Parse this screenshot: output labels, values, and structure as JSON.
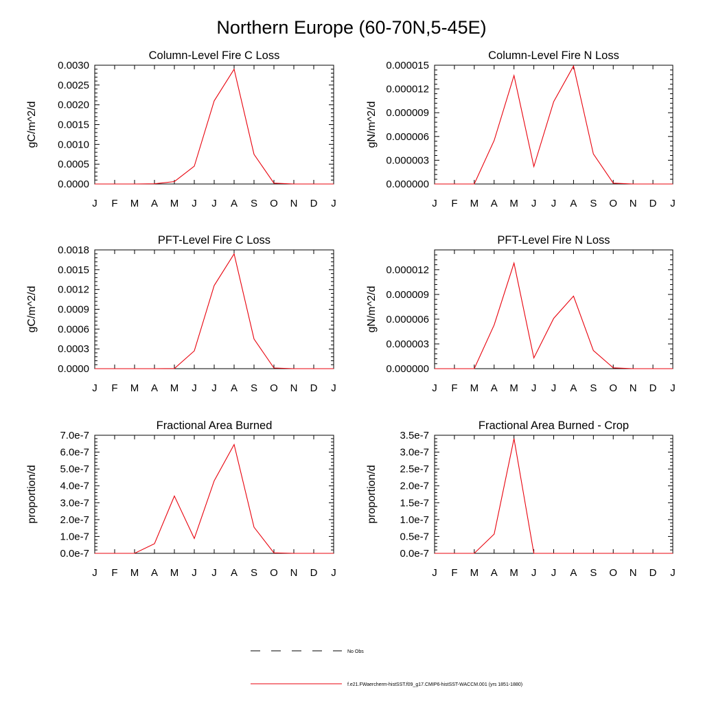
{
  "title": "Northern Europe (60-70N,5-45E)",
  "colors": {
    "model_line": "#e8000b",
    "axis": "#000000",
    "obs_line": "#000000"
  },
  "legend": [
    {
      "label": "No Obs",
      "style": "dashed",
      "color": "#000000"
    },
    {
      "label": "f.e21.FWaercherm-histSST.f09_g17.CMIP6-histSST-WACCM.001 (yrs 1851-1880)",
      "style": "solid",
      "color": "#e8000b"
    }
  ],
  "chart_data": [
    {
      "type": "line",
      "title": "Column-Level Fire C Loss",
      "ylabel": "gC/m^2/d",
      "categories": [
        "J",
        "F",
        "M",
        "A",
        "M",
        "J",
        "J",
        "A",
        "S",
        "O",
        "N",
        "D",
        "J"
      ],
      "ylim": [
        0,
        0.003
      ],
      "yticks": [
        "0.0000",
        "0.0005",
        "0.0010",
        "0.0015",
        "0.0020",
        "0.0025",
        "0.0030"
      ],
      "series": [
        {
          "values": [
            0,
            0,
            0,
            5e-06,
            6e-05,
            0.00045,
            0.0021,
            0.0029,
            0.00075,
            2e-05,
            0,
            0,
            0
          ]
        }
      ]
    },
    {
      "type": "line",
      "title": "Column-Level Fire N Loss",
      "ylabel": "gN/m^2/d",
      "categories": [
        "J",
        "F",
        "M",
        "A",
        "M",
        "J",
        "J",
        "A",
        "S",
        "O",
        "N",
        "D",
        "J"
      ],
      "ylim": [
        0,
        1.5e-05
      ],
      "yticks": [
        "0.000000",
        "0.000003",
        "0.000006",
        "0.000009",
        "0.000012",
        "0.000015"
      ],
      "series": [
        {
          "values": [
            0,
            0,
            0,
            5.5e-06,
            1.37e-05,
            2.2e-06,
            1.04e-05,
            1.49e-05,
            3.8e-06,
            1e-07,
            0,
            0,
            0
          ]
        }
      ]
    },
    {
      "type": "line",
      "title": "PFT-Level Fire C Loss",
      "ylabel": "gC/m^2/d",
      "categories": [
        "J",
        "F",
        "M",
        "A",
        "M",
        "J",
        "J",
        "A",
        "S",
        "O",
        "N",
        "D",
        "J"
      ],
      "ylim": [
        0,
        0.0018
      ],
      "yticks": [
        "0.0000",
        "0.0003",
        "0.0006",
        "0.0009",
        "0.0012",
        "0.0015",
        "0.0018"
      ],
      "series": [
        {
          "values": [
            0,
            0,
            0,
            0,
            2e-06,
            0.00027,
            0.00126,
            0.00174,
            0.00045,
            1e-05,
            0,
            0,
            0
          ]
        }
      ]
    },
    {
      "type": "line",
      "title": "PFT-Level Fire N Loss",
      "ylabel": "gN/m^2/d",
      "categories": [
        "J",
        "F",
        "M",
        "A",
        "M",
        "J",
        "J",
        "A",
        "S",
        "O",
        "N",
        "D",
        "J"
      ],
      "ylim": [
        0,
        1.44e-05
      ],
      "yticks": [
        "0.000000",
        "0.000003",
        "0.000006",
        "0.000009",
        "0.000012"
      ],
      "series": [
        {
          "values": [
            0,
            0,
            0,
            5.3e-06,
            1.28e-05,
            1.3e-06,
            6.1e-06,
            8.8e-06,
            2.2e-06,
            1e-07,
            0,
            0,
            0
          ]
        }
      ]
    },
    {
      "type": "line",
      "title": "Fractional Area Burned",
      "ylabel": "proportion/d",
      "categories": [
        "J",
        "F",
        "M",
        "A",
        "M",
        "J",
        "J",
        "A",
        "S",
        "O",
        "N",
        "D",
        "J"
      ],
      "ylim": [
        0,
        7e-07
      ],
      "yticks": [
        "0.0e-7",
        "1.0e-7",
        "2.0e-7",
        "3.0e-7",
        "4.0e-7",
        "5.0e-7",
        "6.0e-7",
        "7.0e-7"
      ],
      "series": [
        {
          "values": [
            0,
            0,
            0,
            5.7e-08,
            3.4e-07,
            8.8e-08,
            4.3e-07,
            6.45e-07,
            1.55e-07,
            3e-09,
            0,
            0,
            0
          ]
        }
      ]
    },
    {
      "type": "line",
      "title": "Fractional Area Burned - Crop",
      "ylabel": "proportion/d",
      "categories": [
        "J",
        "F",
        "M",
        "A",
        "M",
        "J",
        "J",
        "A",
        "S",
        "O",
        "N",
        "D",
        "J"
      ],
      "ylim": [
        0,
        3.5e-07
      ],
      "yticks": [
        "0.0e-7",
        "0.5e-7",
        "1.0e-7",
        "1.5e-7",
        "2.0e-7",
        "2.5e-7",
        "3.0e-7",
        "3.5e-7"
      ],
      "series": [
        {
          "values": [
            0,
            0,
            0,
            5.7e-08,
            3.4e-07,
            0,
            0,
            0,
            0,
            0,
            0,
            0,
            0
          ]
        }
      ]
    }
  ]
}
